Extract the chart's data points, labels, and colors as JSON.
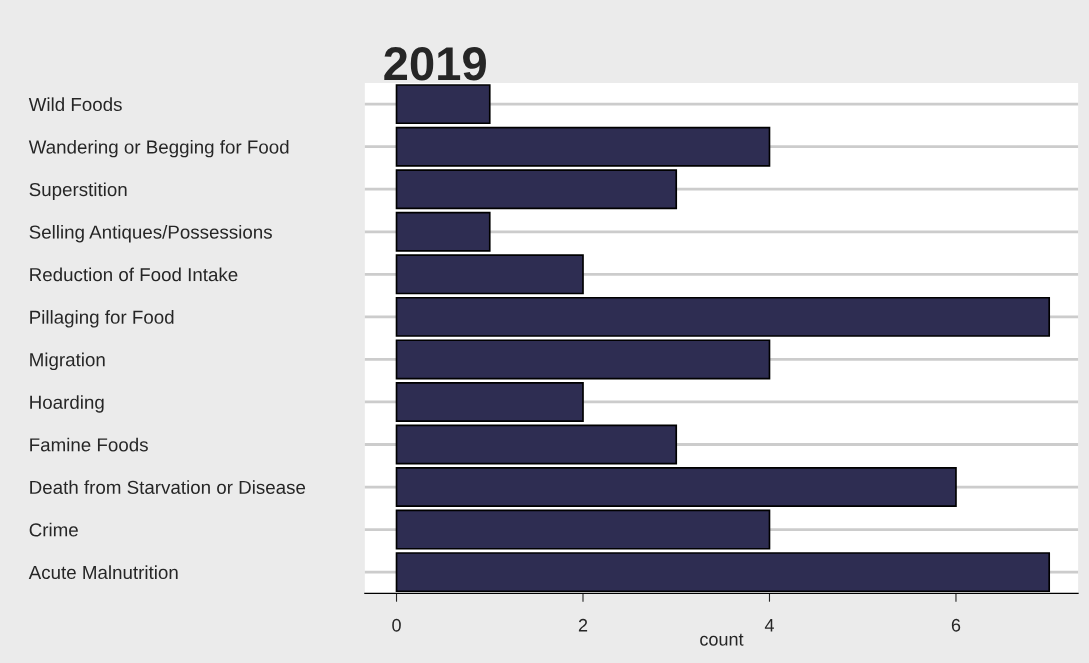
{
  "chart_data": {
    "type": "bar",
    "orientation": "horizontal",
    "title": "2019",
    "xlabel": "count",
    "categories": [
      "Wild Foods",
      "Wandering or Begging for Food",
      "Superstition",
      "Selling Antiques/Possessions",
      "Reduction of Food Intake",
      "Pillaging for Food",
      "Migration",
      "Hoarding",
      "Famine Foods",
      "Death from Starvation or Disease",
      "Crime",
      "Acute Malnutrition"
    ],
    "values": [
      1,
      4,
      3,
      1,
      2,
      7,
      4,
      2,
      3,
      6,
      4,
      7
    ],
    "color": "#2e2d52",
    "xlim": [
      -0.34,
      7.31
    ],
    "xticks": [
      0,
      2,
      4,
      6
    ],
    "grid": "y"
  }
}
